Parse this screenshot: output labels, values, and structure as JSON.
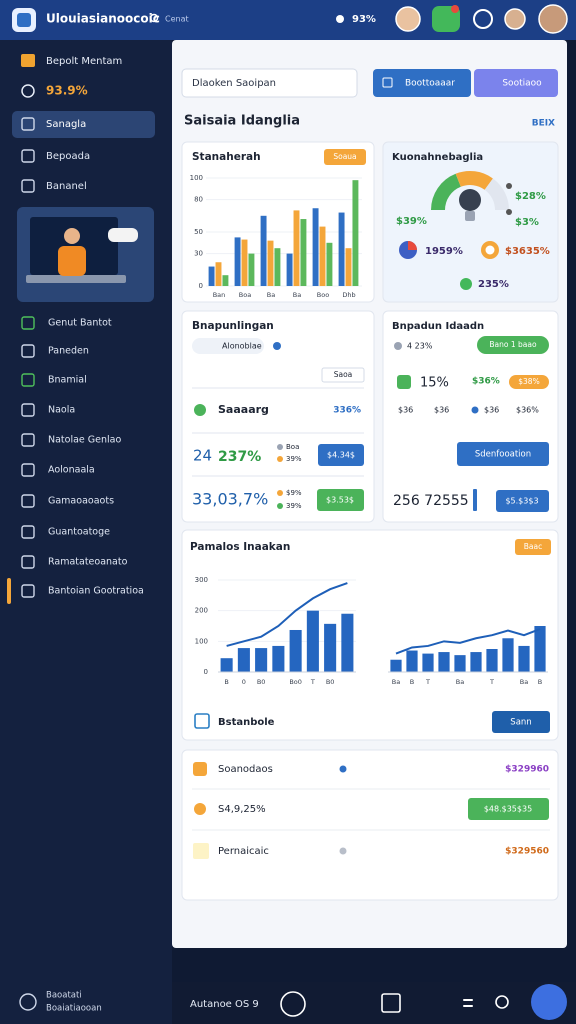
{
  "top_bar": {
    "title": "Ulouiasianoocoic",
    "subtitle": "Cenat",
    "battery": "93%"
  },
  "sidebar": {
    "header": "Bepolt Mentam",
    "stat": "93.9%",
    "nav_top": [
      "Sanagla",
      "Bepoada",
      "Bananel"
    ],
    "nav": [
      "Genut Bantot",
      "Paneden",
      "Bnamial",
      "Naola",
      "Natolae Genlao",
      "Aolonaala",
      "Gamaoaoaots",
      "Guantoatoge",
      "Ramatateoanato",
      "Bantoian Gootratioa"
    ],
    "footer": [
      "Baoatati",
      "Boaiatiaooan"
    ]
  },
  "toolbar": {
    "search": "Dlaoken Saoipan",
    "button_primary": "Boottoaaar",
    "button_secondary": "Sootiaoo"
  },
  "section": {
    "title": "Saisaia Idanglia",
    "link": "BEIX"
  },
  "bar_card": {
    "title": "Stanaherah",
    "badge": "Soaua"
  },
  "gauge_card": {
    "title": "Kuonahnebaglia",
    "legend": [
      "$28%",
      "$3%"
    ],
    "left_value": "$39%",
    "donut_labels": [
      "1959%",
      "$3635%"
    ],
    "bottom_value": "235%"
  },
  "list_card": {
    "title": "Bnapunlingan",
    "chip": "Alonoblae",
    "tag": "Saoa",
    "row1": {
      "label": "Saaaarg",
      "value": "336%"
    },
    "row2": {
      "count": "24",
      "value": "237%",
      "legend": [
        "Boa",
        "39%"
      ],
      "button": "$4.34$"
    },
    "row3": {
      "value": "33,03,7%",
      "legend": [
        "$9%",
        "39%"
      ],
      "button": "$3.53$"
    }
  },
  "stats_card": {
    "title": "Bnpadun Idaadn",
    "note": "4 23%",
    "pill": "Bano 1 baao",
    "main_value": "15%",
    "green_value": "$36%",
    "orange_pill": "$38%",
    "row": [
      "$36",
      "$36",
      "$36",
      "$36%"
    ],
    "button": "Sdenfooation",
    "total": "256 72555",
    "total_button": "$5.$3$3"
  },
  "trend_card": {
    "title": "Pamalos Inaakan",
    "badge": "Baac",
    "footer_label": "Bstanbole",
    "footer_button": "Sann"
  },
  "summary": [
    {
      "label": "Soanodaos",
      "value": "$329960"
    },
    {
      "label": "S4,9,25%",
      "value": "$48.$35$35"
    },
    {
      "label": "Pernaicaic",
      "value": "$329560"
    }
  ],
  "bottom_bar": {
    "label": "Autanoe OS 9"
  },
  "chart_data": [
    {
      "type": "bar",
      "categories": [
        "Ban",
        "Boa",
        "Ba",
        "Ba",
        "Boo",
        "Dhb"
      ],
      "series": [
        {
          "color": "#2f6fc4",
          "values": [
            18,
            45,
            65,
            30,
            72,
            68
          ]
        },
        {
          "color": "#f4a63a",
          "values": [
            22,
            43,
            42,
            70,
            55,
            35
          ]
        },
        {
          "color": "#5cb85c",
          "values": [
            10,
            30,
            35,
            62,
            40,
            98
          ]
        }
      ],
      "ylim": [
        0,
        100
      ],
      "yticks": [
        0,
        30,
        50,
        80,
        100
      ]
    },
    {
      "type": "bar_line",
      "categories": [
        "B",
        "0",
        "B0",
        null,
        "Bo0",
        "T",
        "B0",
        null
      ],
      "series": [
        {
          "color": "#2566c0",
          "values": [
            45,
            78,
            78,
            85,
            137,
            200,
            157,
            190
          ]
        },
        {
          "color": "#1e5fb8",
          "style": "line",
          "values": [
            85,
            100,
            115,
            150,
            200,
            240,
            270,
            290
          ]
        }
      ],
      "ylim": [
        0,
        300
      ],
      "yticks": [
        0,
        100,
        200,
        300
      ]
    },
    {
      "type": "bar_line",
      "categories": [
        "Ba",
        "B",
        "T",
        null,
        "Ba",
        null,
        "T",
        null,
        "Ba",
        "B"
      ],
      "series": [
        {
          "color": "#2566c0",
          "values": [
            40,
            70,
            60,
            65,
            55,
            65,
            75,
            110,
            85,
            150
          ]
        },
        {
          "color": "#1e5fb8",
          "style": "line",
          "values": [
            60,
            80,
            85,
            100,
            95,
            110,
            120,
            135,
            120,
            140
          ]
        }
      ],
      "ylim": [
        0,
        300
      ]
    }
  ]
}
